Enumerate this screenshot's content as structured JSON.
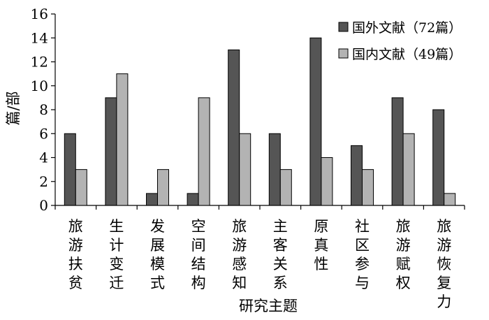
{
  "chart_data": {
    "type": "bar",
    "ylabel": "篇/部",
    "xlabel": "研究主题",
    "ylim": [
      0,
      16
    ],
    "yticks": [
      0,
      2,
      4,
      6,
      8,
      10,
      12,
      14,
      16
    ],
    "grid": false,
    "legend_position": "top-right",
    "categories": [
      "旅游扶贫",
      "生计变迁",
      "发展模式",
      "空间结构",
      "旅游感知",
      "主客关系",
      "原真性",
      "社区参与",
      "旅游赋权",
      "旅游恢复力"
    ],
    "series": [
      {
        "name": "国外文献（72篇）",
        "color": "#555555",
        "values": [
          6,
          9,
          1,
          1,
          13,
          6,
          14,
          5,
          9,
          8
        ]
      },
      {
        "name": "国内文献（49篇）",
        "color": "#b3b3b3",
        "values": [
          3,
          11,
          3,
          9,
          6,
          3,
          4,
          3,
          6,
          1
        ]
      }
    ]
  }
}
